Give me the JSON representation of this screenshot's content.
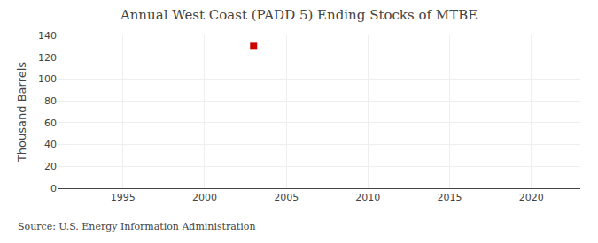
{
  "chart_data": {
    "type": "scatter",
    "title": "Annual West Coast (PADD 5) Ending Stocks of MTBE",
    "ylabel": "Thousand Barrels",
    "annotations": [
      "Source: U.S. Energy Information Administration"
    ],
    "x": [
      2003
    ],
    "values": [
      130
    ],
    "color": "#cc0000",
    "marker": "square",
    "xlim": [
      1991,
      2023
    ],
    "xticks": [
      1995,
      2000,
      2005,
      2010,
      2015,
      2020
    ],
    "ylim": [
      0,
      140
    ],
    "yticks": [
      0,
      20,
      40,
      60,
      80,
      100,
      120,
      140
    ],
    "grid": true
  }
}
